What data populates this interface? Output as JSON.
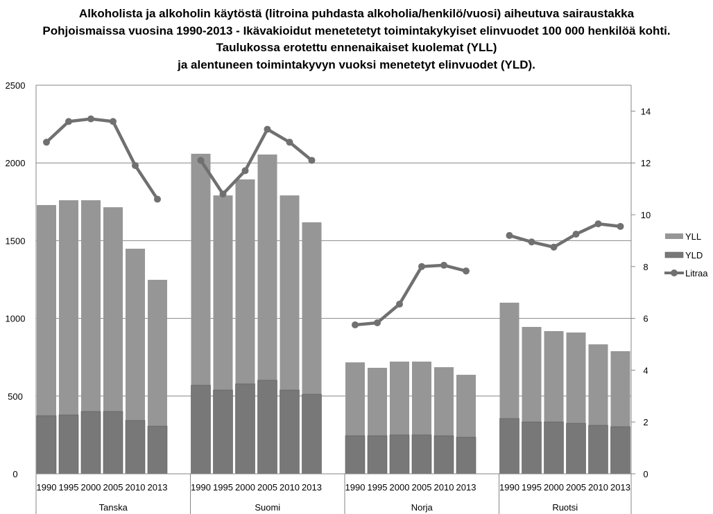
{
  "chart_data": {
    "type": "bar",
    "title_lines": [
      "Alkoholista ja alkoholin käytöstä (litroina puhdasta alkoholia/henkilö/vuosi) aiheutuva sairaustakka",
      "Pohjoismaissa vuosina 1990-2013 - Ikävakioidut menetetetyt toimintakykyiset elinvuodet 100 000 henkilöä kohti.",
      "Taulukossa erotettu ennenaikaiset kuolemat (YLL)",
      "ja alentuneen toimintakyvyn vuoksi menetetyt elinvuodet (YLD)."
    ],
    "groups": [
      "Tanska",
      "Suomi",
      "Norja",
      "Ruotsi"
    ],
    "years": [
      "1990",
      "1995",
      "2000",
      "2005",
      "2010",
      "2013"
    ],
    "stacked": true,
    "y_left": {
      "min": 0,
      "max": 2500,
      "ticks": [
        "0",
        "500",
        "1000",
        "1500",
        "2000",
        "2500"
      ]
    },
    "y_right": {
      "min": 0,
      "max": 15,
      "ticks": [
        "0",
        "2",
        "4",
        "6",
        "8",
        "10",
        "12",
        "14"
      ]
    },
    "grid": true,
    "legend_position": "right",
    "series": [
      {
        "name": "YLL",
        "kind": "bar",
        "axis": "left",
        "color": "#969696",
        "values": [
          [
            1355,
            1381,
            1359,
            1314,
            1105,
            941
          ],
          [
            1489,
            1252,
            1315,
            1452,
            1252,
            1106
          ],
          [
            472,
            437,
            472,
            472,
            441,
            401
          ],
          [
            745,
            611,
            584,
            584,
            521,
            486
          ]
        ]
      },
      {
        "name": "YLD",
        "kind": "bar",
        "axis": "left",
        "color": "#787878",
        "values": [
          [
            374,
            379,
            401,
            401,
            343,
            307
          ],
          [
            570,
            539,
            579,
            602,
            539,
            512
          ],
          [
            245,
            245,
            250,
            250,
            245,
            236
          ],
          [
            356,
            334,
            334,
            325,
            312,
            303
          ]
        ]
      },
      {
        "name": "Litraa",
        "kind": "line",
        "axis": "right",
        "color": "#707070",
        "values": [
          [
            12.8,
            13.6,
            13.7,
            13.6,
            11.9,
            10.6
          ],
          [
            12.1,
            10.8,
            11.7,
            13.3,
            12.8,
            12.1
          ],
          [
            5.75,
            5.83,
            6.55,
            8.0,
            8.05,
            7.83
          ],
          [
            9.2,
            8.95,
            8.75,
            9.25,
            9.65,
            9.55
          ]
        ]
      }
    ]
  }
}
